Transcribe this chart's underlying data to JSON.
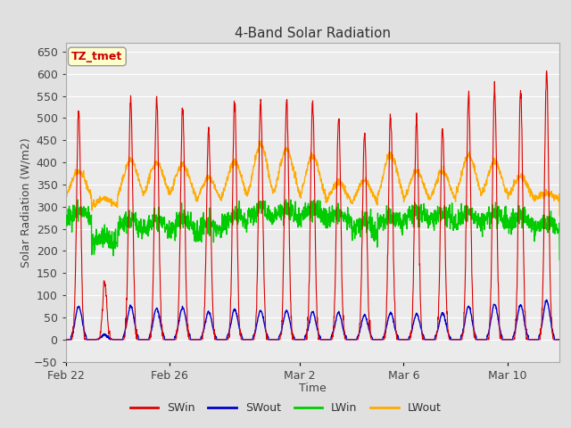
{
  "title": "4-Band Solar Radiation",
  "xlabel": "Time",
  "ylabel": "Solar Radiation (W/m2)",
  "ylim": [
    -50,
    670
  ],
  "xtick_labels": [
    "Feb 22",
    "Feb 26",
    "Mar 2",
    "Mar 6",
    "Mar 10"
  ],
  "xtick_positions": [
    0,
    4,
    9,
    13,
    17
  ],
  "legend_labels": [
    "SWin",
    "SWout",
    "LWin",
    "LWout"
  ],
  "legend_colors": [
    "#dd0000",
    "#0000cc",
    "#00cc00",
    "#ffaa00"
  ],
  "annotation_text": "TZ_tmet",
  "annotation_color": "#cc0000",
  "annotation_bg": "#ffffcc",
  "swin_color": "#dd0000",
  "swout_color": "#0000cc",
  "lwin_color": "#00cc00",
  "lwout_color": "#ffaa00",
  "background_color": "#e0e0e0",
  "plot_bg_color": "#ebebeb",
  "grid_color": "#ffffff",
  "n_days": 19,
  "peak_vals_swin": [
    520,
    130,
    545,
    545,
    530,
    475,
    540,
    540,
    540,
    540,
    510,
    465,
    510,
    495,
    480,
    545,
    570,
    565,
    600
  ],
  "peak_vals_swout": [
    75,
    10,
    75,
    70,
    72,
    62,
    68,
    65,
    65,
    62,
    60,
    55,
    60,
    58,
    60,
    75,
    80,
    78,
    88
  ],
  "lwout_night": [
    310,
    295,
    305,
    310,
    310,
    300,
    305,
    300,
    305,
    300,
    300,
    295,
    300,
    300,
    300,
    305,
    310,
    310,
    315
  ],
  "lwout_day_peak": [
    380,
    320,
    405,
    400,
    395,
    365,
    400,
    440,
    430,
    415,
    355,
    360,
    420,
    380,
    380,
    415,
    400,
    370,
    330
  ],
  "lwin_base": [
    260,
    210,
    240,
    240,
    235,
    230,
    250,
    265,
    265,
    265,
    255,
    230,
    250,
    260,
    255,
    255,
    255,
    250,
    240
  ],
  "lwin_day_bump": [
    30,
    20,
    30,
    30,
    35,
    30,
    30,
    30,
    30,
    30,
    30,
    35,
    30,
    30,
    30,
    30,
    30,
    28,
    25
  ]
}
